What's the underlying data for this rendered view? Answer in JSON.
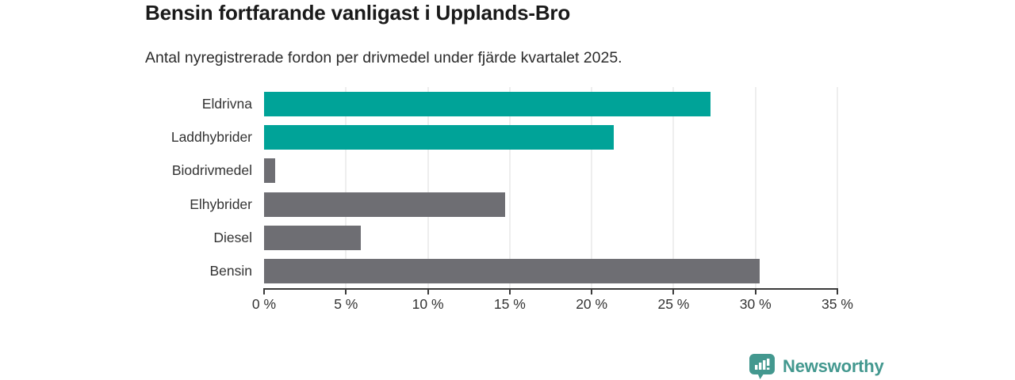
{
  "header": {
    "title": "Bensin fortfarande vanligast i Upplands-Bro",
    "subtitle": "Antal nyregistrerade fordon per drivmedel under fjärde kvartalet 2025."
  },
  "chart_data": {
    "type": "bar",
    "orientation": "horizontal",
    "title": "Bensin fortfarande vanligast i Upplands-Bro",
    "subtitle": "Antal nyregistrerade fordon per drivmedel under fjärde kvartalet 2025.",
    "categories": [
      "Eldrivna",
      "Laddhybrider",
      "Biodrivmedel",
      "Elhybrider",
      "Diesel",
      "Bensin"
    ],
    "values": [
      27.2,
      21.3,
      0.7,
      14.7,
      5.9,
      30.2
    ],
    "unit": "%",
    "bar_colors": [
      "#00a398",
      "#00a398",
      "#6e6e73",
      "#6e6e73",
      "#6e6e73",
      "#6e6e73"
    ],
    "xlabel": "",
    "ylabel": "",
    "xlim": [
      0,
      35
    ],
    "x_ticks": [
      0,
      5,
      10,
      15,
      20,
      25,
      30,
      35
    ],
    "x_tick_labels": [
      "0 %",
      "5 %",
      "10 %",
      "15 %",
      "20 %",
      "25 %",
      "30 %",
      "35 %"
    ],
    "grid": "vertical-only",
    "legend": "none"
  },
  "footer": {
    "brand_label": "Newsworthy"
  },
  "colors": {
    "accent_teal": "#00a398",
    "bar_gray": "#6e6e73",
    "axis": "#3a3a3a",
    "gridline": "#dedede",
    "title_text": "#1a1a1a",
    "body_text": "#333333",
    "brand_teal": "#43988f"
  }
}
